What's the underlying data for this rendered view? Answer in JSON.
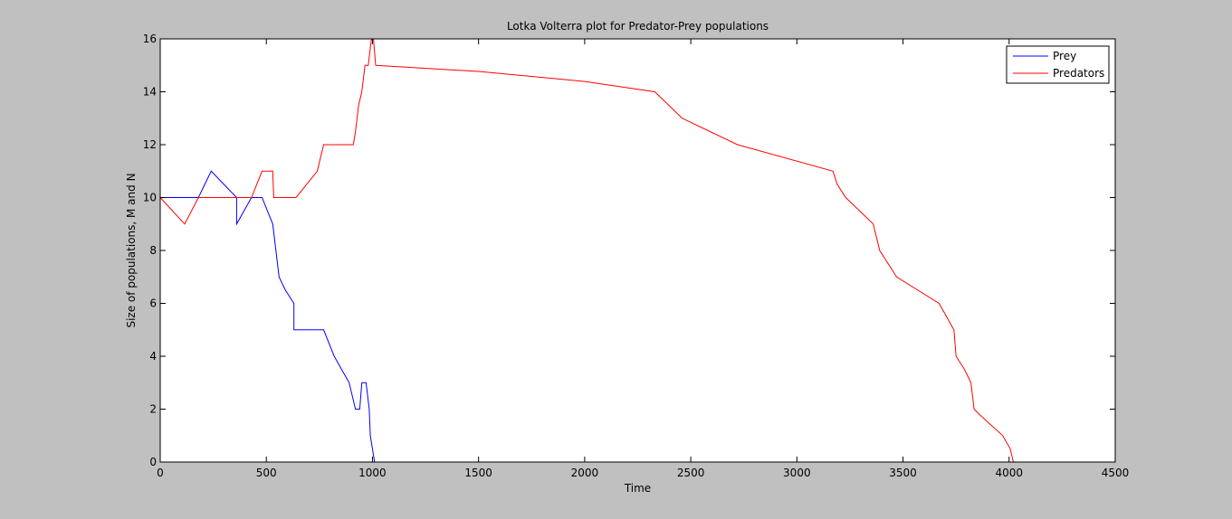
{
  "figure": {
    "background": "#c0c0c0",
    "axes_background": "#ffffff"
  },
  "chart_data": {
    "type": "line",
    "title": "Lotka Volterra plot for Predator-Prey populations",
    "xlabel": "Time",
    "ylabel": "Size of populations, M and N",
    "xlim": [
      0,
      4500
    ],
    "ylim": [
      0,
      16
    ],
    "xticks": [
      0,
      500,
      1000,
      1500,
      2000,
      2500,
      3000,
      3500,
      4000,
      4500
    ],
    "yticks": [
      0,
      2,
      4,
      6,
      8,
      10,
      12,
      14,
      16
    ],
    "grid": false,
    "legend": {
      "position": "top-right",
      "entries": [
        "Prey",
        "Predators"
      ]
    },
    "series": [
      {
        "name": "Prey",
        "color": "#0000ff",
        "x": [
          0,
          100,
          180,
          240,
          300,
          360,
          360,
          430,
          470,
          480,
          530,
          560,
          590,
          630,
          630,
          680,
          770,
          820,
          890,
          920,
          940,
          950,
          970,
          985,
          990,
          1010
        ],
        "y": [
          10,
          10,
          10,
          11,
          10.5,
          10,
          9,
          10,
          10,
          10,
          9,
          7,
          6.5,
          6,
          5,
          5,
          5,
          4,
          3,
          2,
          2,
          3,
          3,
          2,
          1,
          0
        ]
      },
      {
        "name": "Predators",
        "color": "#ff0000",
        "x": [
          0,
          115,
          180,
          250,
          350,
          430,
          480,
          530,
          535,
          640,
          740,
          770,
          910,
          920,
          935,
          950,
          965,
          980,
          995,
          1005,
          1015,
          1500,
          2000,
          2330,
          2460,
          2720,
          3170,
          3190,
          3230,
          3360,
          3390,
          3470,
          3670,
          3740,
          3750,
          3790,
          3820,
          3835,
          3860,
          3970,
          4005,
          4020
        ],
        "y": [
          10,
          9,
          10,
          10,
          10,
          10,
          11,
          11,
          10,
          10,
          11,
          12,
          12,
          12.5,
          13.5,
          14,
          15,
          15,
          16,
          16,
          15,
          14.77,
          14.39,
          14,
          13,
          12,
          11,
          10.5,
          10,
          9,
          8,
          7,
          6,
          5,
          4,
          3.5,
          3,
          2,
          1.8,
          1,
          0.5,
          0
        ]
      }
    ]
  }
}
